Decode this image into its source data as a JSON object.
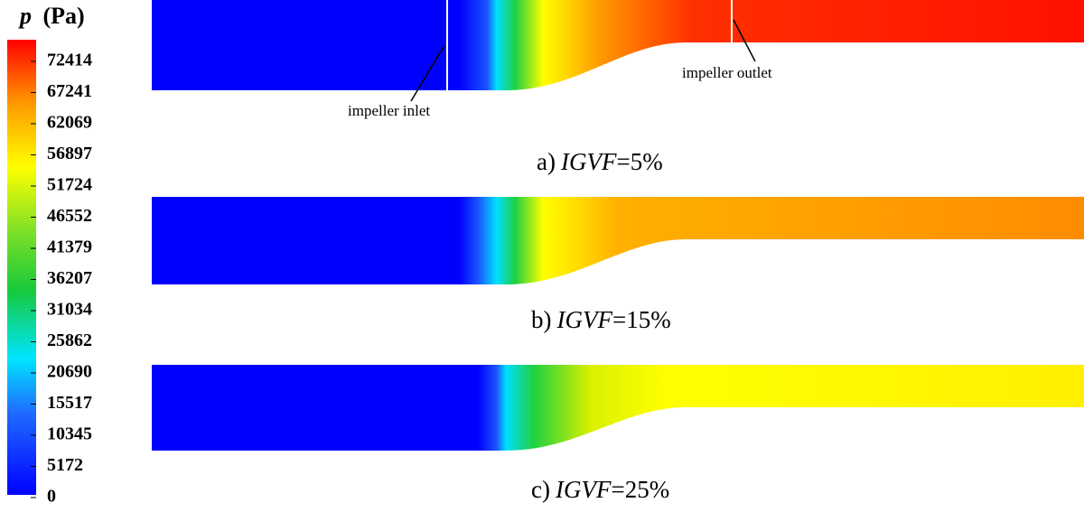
{
  "legend": {
    "symbol": "p",
    "unit": "(Pa)",
    "ticks": [
      "72414",
      "67241",
      "62069",
      "56897",
      "51724",
      "46552",
      "41379",
      "36207",
      "31034",
      "25862",
      "20690",
      "15517",
      "10345",
      "5172",
      "0"
    ]
  },
  "annotations": {
    "inlet": "impeller inlet",
    "outlet": "impeller outlet"
  },
  "panels": [
    {
      "label": "a)",
      "variable": "IGVF",
      "value": "=5%"
    },
    {
      "label": "b)",
      "variable": "IGVF",
      "value": "=15%"
    },
    {
      "label": "c)",
      "variable": "IGVF",
      "value": "=25%"
    }
  ]
}
